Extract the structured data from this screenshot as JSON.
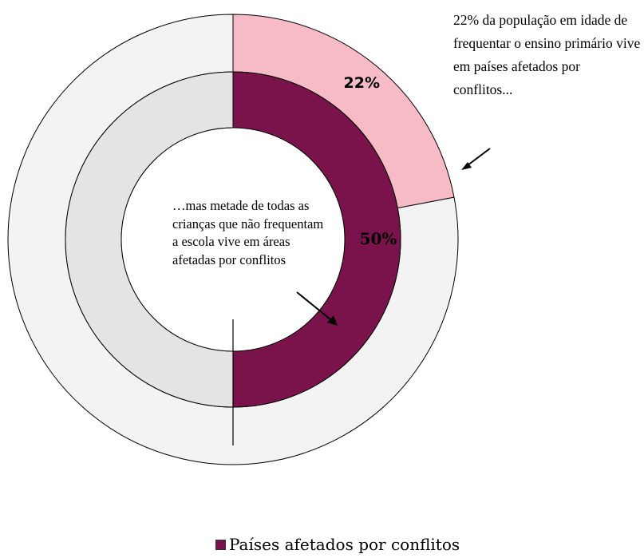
{
  "chart_data": {
    "type": "pie",
    "rings": [
      {
        "ring": "outer",
        "slices": [
          {
            "series": "Países afetados por conflitos",
            "value": 22,
            "label": "22%",
            "color": "#f7bac7"
          },
          {
            "series": "other",
            "value": 78,
            "label": "",
            "color": "#f3f3f3"
          }
        ]
      },
      {
        "ring": "inner",
        "slices": [
          {
            "series": "Países afetados por conflitos",
            "value": 50,
            "label": "50%",
            "color": "#7a134b"
          },
          {
            "series": "other",
            "value": 50,
            "label": "",
            "color": "#e4e4e4"
          }
        ]
      }
    ],
    "annotations": {
      "outer": "22% da população em idade de frequentar o ensino primário vive em países afetados por conflitos...",
      "inner": "…mas metade de todas as crianças que não frequentam a escola vive em áreas afetadas por conflitos"
    },
    "legend": [
      {
        "label": "Países afetados por conflitos",
        "color": "#7a134b"
      }
    ],
    "legend_position": "bottom"
  }
}
